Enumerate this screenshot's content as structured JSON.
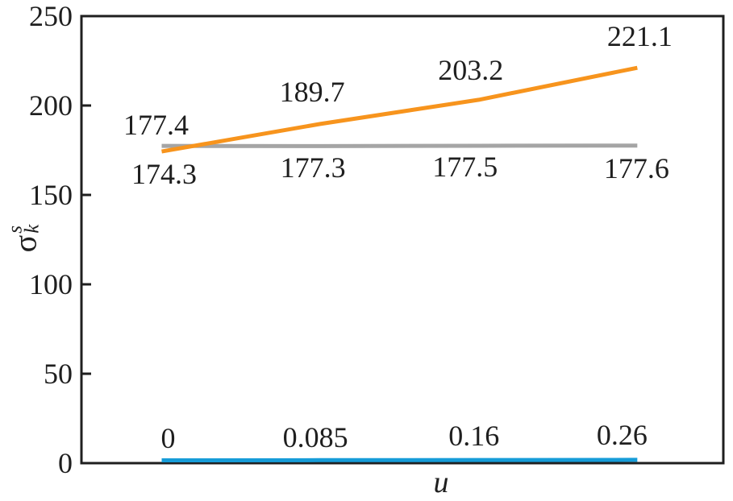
{
  "figure": {
    "background": "#ffffff",
    "axis_color": "#1f1f1f"
  },
  "chart_data": {
    "type": "line",
    "title": "",
    "xlabel": "u",
    "ylabel": {
      "base": "σ",
      "superscript": "s",
      "subscript": "k"
    },
    "ylim": [
      0,
      250
    ],
    "yticks": [
      0,
      50,
      100,
      150,
      200,
      250
    ],
    "x": [
      0,
      0.085,
      0.16,
      0.26
    ],
    "grid": "off",
    "legend": "none",
    "series": [
      {
        "name": "gray-flat-line",
        "color": "#A5A5A5",
        "values": [
          177.4,
          177.3,
          177.5,
          177.6
        ],
        "labels": [
          "177.4",
          "177.3",
          "177.5",
          "177.6"
        ]
      },
      {
        "name": "orange-rising-line",
        "color": "#F7941D",
        "values": [
          174.3,
          189.7,
          203.2,
          221.1
        ],
        "labels": [
          "174.3",
          "189.7",
          "203.2",
          "221.1"
        ]
      },
      {
        "name": "blue-u-line",
        "color": "#169CD8",
        "values": [
          0,
          0.085,
          0.16,
          0.26
        ],
        "labels": [
          "0",
          "0.085",
          "0.16",
          "0.26"
        ]
      }
    ]
  }
}
